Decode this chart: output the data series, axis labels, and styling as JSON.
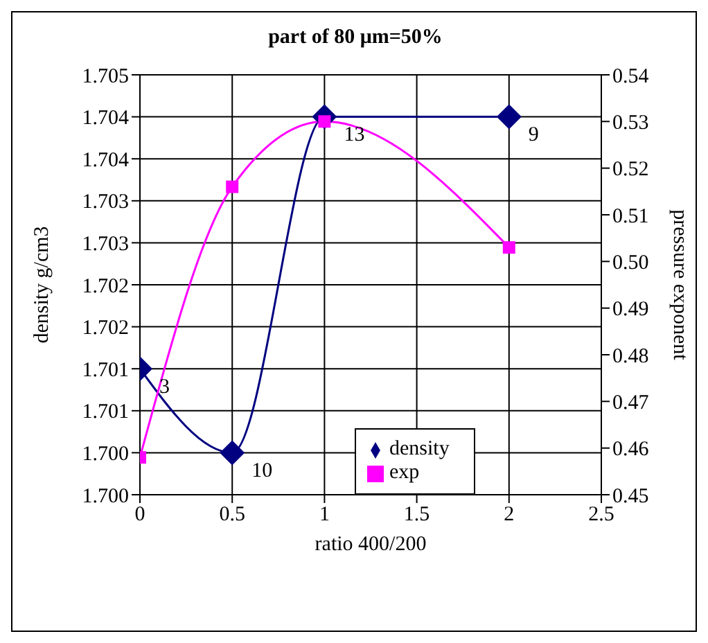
{
  "chart_data": {
    "type": "line",
    "title": "part of 80 μm=50%",
    "xlabel": "ratio 400/200",
    "ylabel": "density g/cm3",
    "y2label": "pressure exponent",
    "x": [
      0,
      0.5,
      1,
      2
    ],
    "series": [
      {
        "name": "density",
        "color": "#000080",
        "marker": "diamond",
        "values": [
          1.7015,
          1.7005,
          1.7045,
          1.7045
        ]
      },
      {
        "name": "exp",
        "color": "#ff00ff",
        "marker": "square",
        "axis": "y2",
        "values": [
          0.458,
          0.516,
          0.53,
          0.503
        ]
      }
    ],
    "xlim": [
      0,
      2.5
    ],
    "xticks": [
      0,
      0.5,
      1,
      1.5,
      2,
      2.5
    ],
    "ylim": [
      1.7,
      1.705
    ],
    "yticks": [
      {
        "value": 1.7,
        "label": "1.700"
      },
      {
        "value": 1.7005,
        "label": "1.700"
      },
      {
        "value": 1.701,
        "label": "1.701"
      },
      {
        "value": 1.7015,
        "label": "1.701"
      },
      {
        "value": 1.702,
        "label": "1.702"
      },
      {
        "value": 1.7025,
        "label": "1.702"
      },
      {
        "value": 1.703,
        "label": "1.703"
      },
      {
        "value": 1.7035,
        "label": "1.703"
      },
      {
        "value": 1.704,
        "label": "1.704"
      },
      {
        "value": 1.7045,
        "label": "1.704"
      },
      {
        "value": 1.705,
        "label": "1.705"
      }
    ],
    "y2lim": [
      0.45,
      0.54
    ],
    "y2ticks": [
      0.45,
      0.46,
      0.47,
      0.48,
      0.49,
      {
        "value": 0.5,
        "label": "0.50"
      },
      0.51,
      0.52,
      0.53,
      0.54
    ],
    "annotations": [
      {
        "text": "3",
        "x": 0,
        "y": 1.7015
      },
      {
        "text": "10",
        "x": 0.5,
        "y": 1.7005
      },
      {
        "text": "13",
        "x": 1,
        "y": 1.7045
      },
      {
        "text": "9",
        "x": 2,
        "y": 1.7045
      }
    ],
    "grid": true,
    "legend": "bottom right",
    "line_style": "solid"
  }
}
